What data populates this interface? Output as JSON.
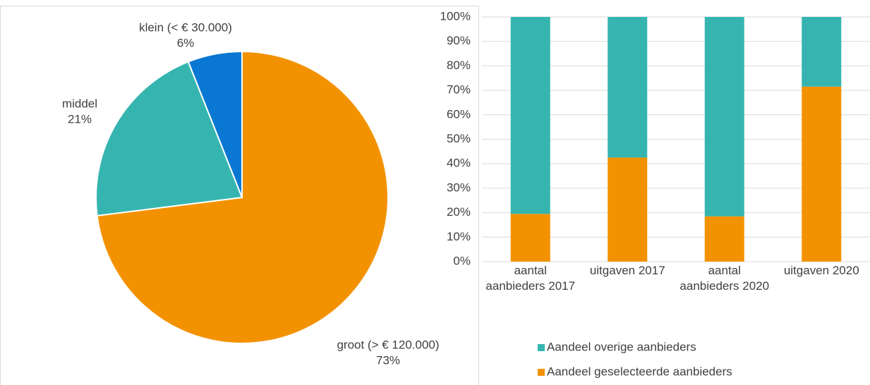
{
  "chart_data": [
    {
      "type": "pie",
      "categories": [
        "groot (> € 120.000)",
        "middel",
        "klein (< € 30.000)"
      ],
      "values": [
        73,
        21,
        6
      ],
      "value_labels": [
        "73%",
        "21%",
        "6%"
      ],
      "colors": [
        "#f39200",
        "#36b5b0",
        "#0a78d2"
      ]
    },
    {
      "type": "bar",
      "stacked": true,
      "categories": [
        "aantal aanbieders 2017",
        "uitgaven 2017",
        "aantal aanbieders 2020",
        "uitgaven 2020"
      ],
      "series": [
        {
          "name": "Aandeel overige aanbieders",
          "color": "#36b5b0",
          "values": [
            80.5,
            57.5,
            81.5,
            28.5
          ]
        },
        {
          "name": "Aandeel geselecteerde aanbieders",
          "color": "#f39200",
          "values": [
            19.5,
            42.5,
            18.5,
            71.5
          ]
        }
      ],
      "ylim": [
        0,
        100
      ],
      "yticks": [
        {
          "value": 0,
          "label": "0%"
        },
        {
          "value": 10,
          "label": "10%"
        },
        {
          "value": 20,
          "label": "20%"
        },
        {
          "value": 30,
          "label": "30%"
        },
        {
          "value": 40,
          "label": "40%"
        },
        {
          "value": 50,
          "label": "50%"
        },
        {
          "value": 60,
          "label": "60%"
        },
        {
          "value": 70,
          "label": "70%"
        },
        {
          "value": 80,
          "label": "80%"
        },
        {
          "value": 90,
          "label": "90%"
        },
        {
          "value": 100,
          "label": "100%"
        }
      ],
      "grid": true,
      "legend": "bottom"
    }
  ]
}
